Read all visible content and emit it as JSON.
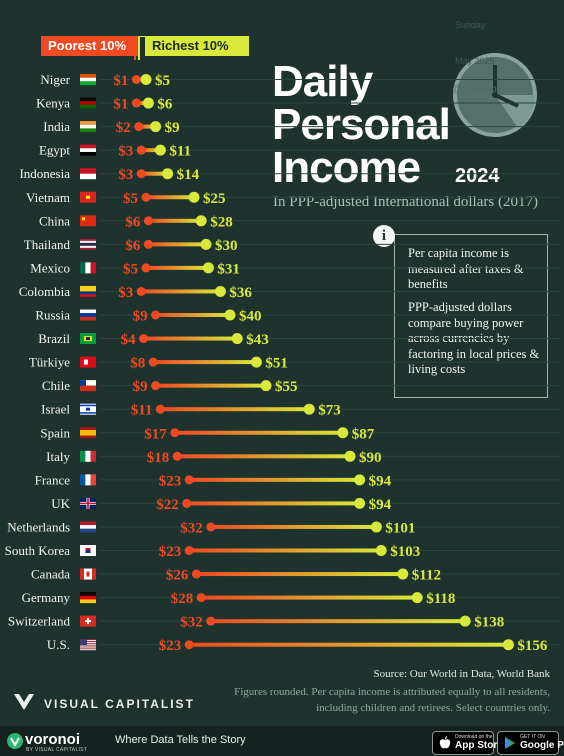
{
  "title": {
    "line1": "Daily",
    "line2": "Personal",
    "line3": "Income",
    "year": "2024"
  },
  "subtitle": "In PPP-adjusted International dollars (2017)",
  "legend": {
    "poorest": "Poorest 10%",
    "richest": "Richest 10%"
  },
  "info": {
    "icon": "i",
    "note1": "Per capita income is measured after taxes & benefits",
    "note2": "PPP-adjusted dollars compare buying power across currencies by factoring in local prices & living costs"
  },
  "clock_watermark": {
    "line1": "Sunday",
    "line2": "May 2025",
    "line3": "@Softbook"
  },
  "source": "Source: Our World in Data, World Bank",
  "footnote1": "Figures rounded. Per capita income is attributed equally to all residents,",
  "footnote2": "including children and retirees. Select countries only.",
  "brand": "VISUAL CAPITALIST",
  "footer": {
    "logo": "voronoi",
    "logo_sub": "BY VISUAL CAPITALIST",
    "tagline": "Where Data Tells the Story",
    "appstore_small": "Download on the",
    "appstore_big": "App Store",
    "googleplay_small": "GET IT ON",
    "googleplay_big": "Google Play"
  },
  "colors": {
    "background": "#1e332e",
    "poorest": "#ef4a22",
    "richest": "#d8e93a",
    "text": "#ffffff",
    "muted": "#8faaa1"
  },
  "chart_data": {
    "type": "dumbbell",
    "title": "Daily Personal Income 2024",
    "subtitle": "In PPP-adjusted International dollars (2017)",
    "value_prefix": "$",
    "x_range": [
      0,
      156
    ],
    "series": [
      {
        "name": "Poorest 10%",
        "values": [
          1,
          1,
          2,
          3,
          3,
          5,
          6,
          6,
          5,
          3,
          9,
          4,
          8,
          9,
          11,
          17,
          18,
          23,
          22,
          32,
          23,
          26,
          28,
          32,
          23
        ]
      },
      {
        "name": "Richest 10%",
        "values": [
          5,
          6,
          9,
          11,
          14,
          25,
          28,
          30,
          31,
          36,
          40,
          43,
          51,
          55,
          73,
          87,
          90,
          94,
          94,
          101,
          103,
          112,
          118,
          138,
          156
        ]
      }
    ],
    "categories": [
      "Niger",
      "Kenya",
      "India",
      "Egypt",
      "Indonesia",
      "Vietnam",
      "China",
      "Thailand",
      "Mexico",
      "Colombia",
      "Russia",
      "Brazil",
      "Türkiye",
      "Chile",
      "Israel",
      "Spain",
      "Italy",
      "France",
      "UK",
      "Netherlands",
      "South Korea",
      "Canada",
      "Germany",
      "Switzerland",
      "U.S."
    ],
    "flags": [
      "niger-flag",
      "kenya-flag",
      "india-flag",
      "egypt-flag",
      "indonesia-flag",
      "vietnam-flag",
      "china-flag",
      "thailand-flag",
      "mexico-flag",
      "colombia-flag",
      "russia-flag",
      "brazil-flag",
      "turkiye-flag",
      "chile-flag",
      "israel-flag",
      "spain-flag",
      "italy-flag",
      "france-flag",
      "uk-flag",
      "netherlands-flag",
      "south-korea-flag",
      "canada-flag",
      "germany-flag",
      "switzerland-flag",
      "us-flag"
    ]
  }
}
